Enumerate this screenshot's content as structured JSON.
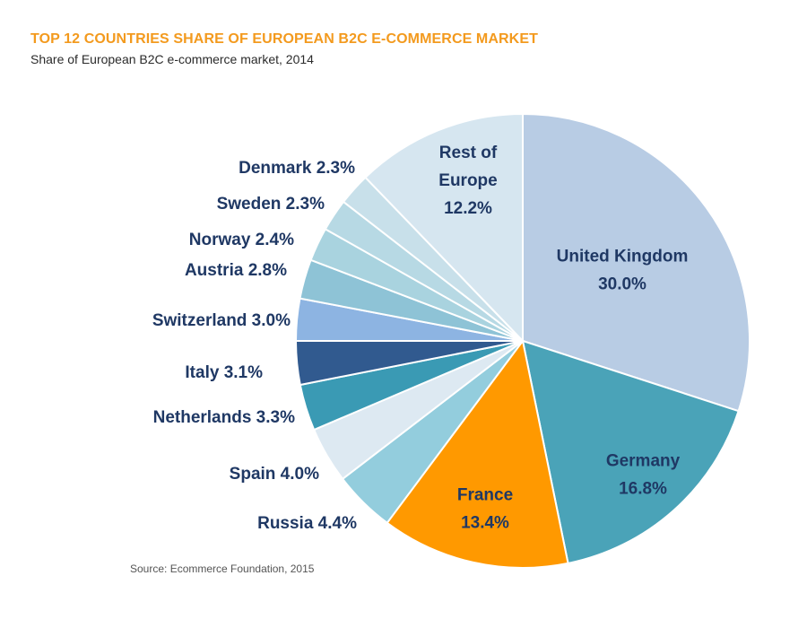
{
  "chart_data": {
    "type": "pie",
    "title": "TOP 12 COUNTRIES SHARE OF EUROPEAN B2C E-COMMERCE MARKET",
    "subtitle": "Share of European B2C e-commerce market, 2014",
    "source": "Source: Ecommerce Foundation, 2015",
    "unit": "%",
    "slices": [
      {
        "label": "United Kingdom",
        "value": 30.0,
        "value_text": "30.0%",
        "color": "#b8cce4",
        "label_placement": "inside",
        "label_lines": [
          "United Kingdom",
          "30.0%"
        ],
        "text_color": "#1f3864"
      },
      {
        "label": "Germany",
        "value": 16.8,
        "value_text": "16.8%",
        "color": "#4aa3b8",
        "label_placement": "inside",
        "label_lines": [
          "Germany",
          "16.8%"
        ],
        "text_color": "#1f3864"
      },
      {
        "label": "France",
        "value": 13.4,
        "value_text": "13.4%",
        "color": "#ff9900",
        "label_placement": "inside",
        "label_lines": [
          "France",
          "13.4%"
        ],
        "text_color": "#1f3864"
      },
      {
        "label": "Russia",
        "value": 4.4,
        "value_text": "Russia 4.4%",
        "color": "#93cddd",
        "label_placement": "outside",
        "text_color": "#1f3864"
      },
      {
        "label": "Spain",
        "value": 4.0,
        "value_text": "Spain 4.0%",
        "color": "#dde9f2",
        "label_placement": "outside",
        "text_color": "#1f3864"
      },
      {
        "label": "Netherlands",
        "value": 3.3,
        "value_text": "Netherlands 3.3%",
        "color": "#3a9ab4",
        "label_placement": "outside",
        "text_color": "#1f3864"
      },
      {
        "label": "Italy",
        "value": 3.1,
        "value_text": "Italy 3.1%",
        "color": "#315a8f",
        "label_placement": "outside",
        "text_color": "#1f3864"
      },
      {
        "label": "Switzerland",
        "value": 3.0,
        "value_text": "Switzerland 3.0%",
        "color": "#8db4e2",
        "label_placement": "outside",
        "text_color": "#1f3864"
      },
      {
        "label": "Austria",
        "value": 2.8,
        "value_text": "Austria 2.8%",
        "color": "#8ec3d6",
        "label_placement": "outside",
        "text_color": "#1f3864"
      },
      {
        "label": "Norway",
        "value": 2.4,
        "value_text": "Norway 2.4%",
        "color": "#a9d3df",
        "label_placement": "outside",
        "text_color": "#1f3864"
      },
      {
        "label": "Sweden",
        "value": 2.3,
        "value_text": "Sweden 2.3%",
        "color": "#b7d9e4",
        "label_placement": "outside",
        "text_color": "#1f3864"
      },
      {
        "label": "Denmark",
        "value": 2.3,
        "value_text": "Denmark 2.3%",
        "color": "#c8e0ea",
        "label_placement": "outside",
        "text_color": "#1f3864"
      },
      {
        "label": "Rest of Europe",
        "value": 12.2,
        "value_text": "12.2%",
        "color": "#d6e6f0",
        "label_placement": "inside",
        "label_lines": [
          "Rest of",
          "Europe",
          "12.2%"
        ],
        "text_color": "#1f3864"
      }
    ],
    "start_angle": "12 o'clock",
    "direction": "clockwise",
    "slice_border_color": "#ffffff"
  }
}
